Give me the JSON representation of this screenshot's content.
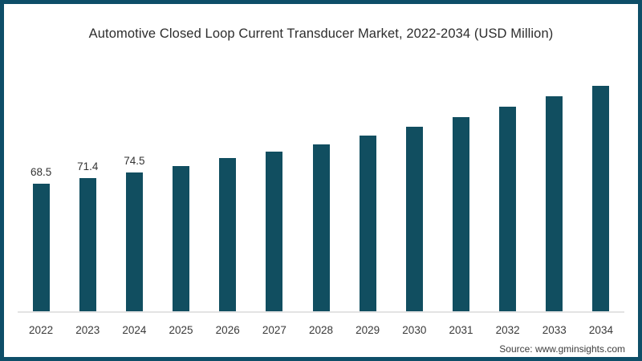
{
  "chart_data": {
    "type": "bar",
    "title": "Automotive Closed Loop Current Transducer Market, 2022-2034 (USD Million)",
    "categories": [
      "2022",
      "2023",
      "2024",
      "2025",
      "2026",
      "2027",
      "2028",
      "2029",
      "2030",
      "2031",
      "2032",
      "2033",
      "2034"
    ],
    "values": [
      68.5,
      71.4,
      74.5,
      78.0,
      82.2,
      85.7,
      89.6,
      94.3,
      99.1,
      104.3,
      109.9,
      115.5,
      121.1
    ],
    "data_labels": [
      "68.5",
      "71.4",
      "74.5",
      "",
      "",
      "",
      "",
      "",
      "",
      "",
      "",
      "",
      ""
    ],
    "xlabel": "",
    "ylabel": "",
    "ylim": [
      0,
      125
    ],
    "grid": false,
    "legend": false
  },
  "source": "Source: www.gminsights.com",
  "colors": {
    "bar": "#114e60",
    "frame_border": "#0e4e68",
    "axis_line": "#e3e3e3",
    "title_text": "#2d2d2d",
    "label_text": "#333333"
  }
}
